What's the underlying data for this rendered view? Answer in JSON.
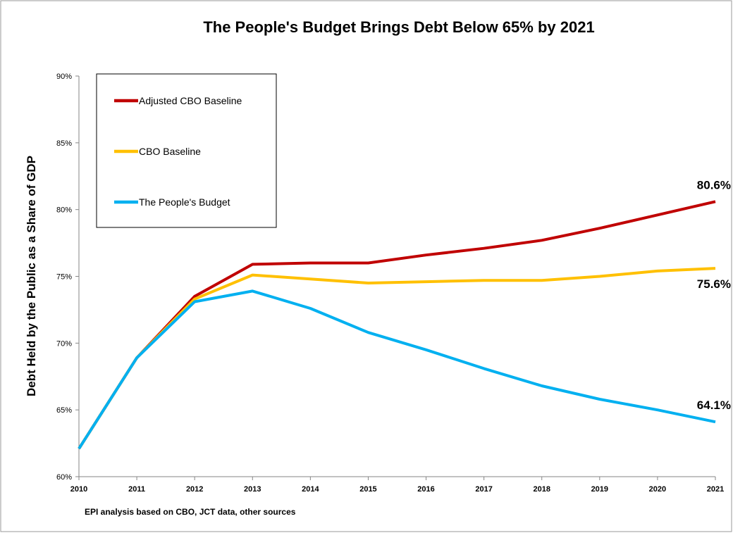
{
  "chart_data": {
    "type": "line",
    "title": "The People's Budget Brings Debt Below 65% by 2021",
    "ylabel": "Debt Held by the Public as a Share of GDP",
    "xlabel": "",
    "source": "EPI analysis based on CBO, JCT data, other sources",
    "x": [
      "2010",
      "2011",
      "2012",
      "2013",
      "2014",
      "2015",
      "2016",
      "2017",
      "2018",
      "2019",
      "2020",
      "2021"
    ],
    "ylim": [
      60,
      90
    ],
    "yticks": [
      60,
      65,
      70,
      75,
      80,
      85,
      90
    ],
    "ytick_labels": [
      "60%",
      "65%",
      "70%",
      "75%",
      "80%",
      "85%",
      "90%"
    ],
    "grid": false,
    "legend_position": "top-left",
    "series": [
      {
        "name": "Adjusted CBO Baseline",
        "color": "#C00000",
        "values": [
          62.1,
          68.9,
          73.5,
          75.9,
          76.0,
          76.0,
          76.6,
          77.1,
          77.7,
          78.6,
          79.6,
          80.6
        ],
        "end_label": "80.6%"
      },
      {
        "name": "CBO Baseline",
        "color": "#FFC000",
        "values": [
          62.1,
          68.9,
          73.3,
          75.1,
          74.8,
          74.5,
          74.6,
          74.7,
          74.7,
          75.0,
          75.4,
          75.6
        ],
        "end_label": "75.6%"
      },
      {
        "name": "The People's Budget",
        "color": "#00B0F0",
        "values": [
          62.1,
          68.9,
          73.1,
          73.9,
          72.6,
          70.8,
          69.5,
          68.1,
          66.8,
          65.8,
          65.0,
          64.1
        ],
        "end_label": "64.1%"
      }
    ]
  }
}
